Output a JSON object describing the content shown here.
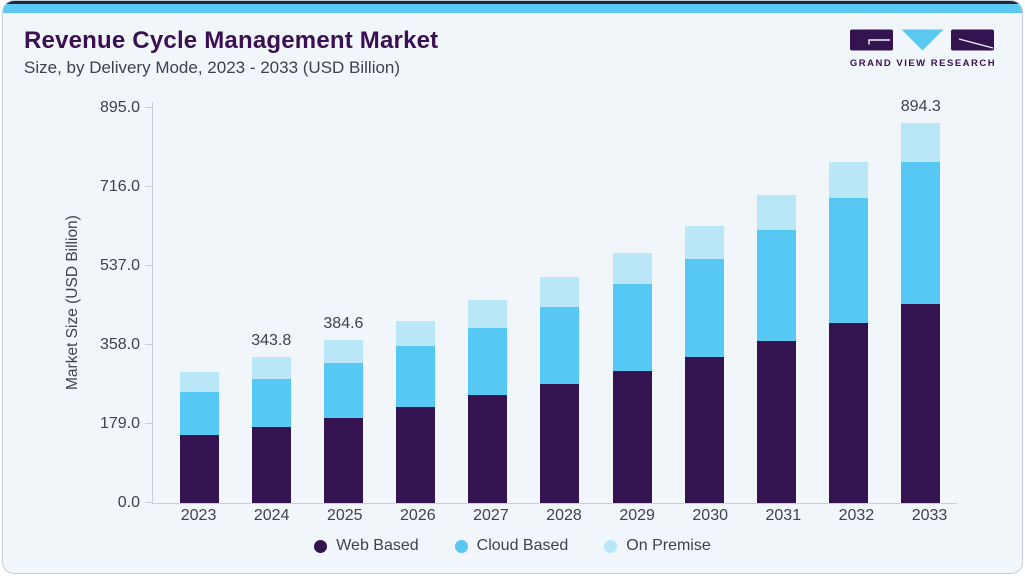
{
  "header": {
    "title": "Revenue Cycle Management Market",
    "subtitle": "Size, by Delivery Mode, 2023 - 2033 (USD Billion)"
  },
  "logo": {
    "text": "GRAND VIEW RESEARCH"
  },
  "colors": {
    "web_based": "#331450",
    "cloud_based": "#56C8F3",
    "on_premise": "#B9E7F8",
    "accent_strip": "#5BC9F2",
    "title_purple": "#3B1053"
  },
  "chart_data": {
    "type": "bar",
    "stacked": true,
    "title": "Revenue Cycle Management Market Size, by Delivery Mode, 2023 - 2033 (USD Billion)",
    "xlabel": "",
    "ylabel": "Market Size (USD Billion)",
    "categories": [
      "2023",
      "2024",
      "2025",
      "2026",
      "2027",
      "2028",
      "2029",
      "2030",
      "2031",
      "2032",
      "2033"
    ],
    "series": [
      {
        "name": "Web Based",
        "color": "#331450",
        "values": [
          160.9,
          179.6,
          200.0,
          225.8,
          253.3,
          280.5,
          310.2,
          344.7,
          382.2,
          422.8,
          468.0
        ]
      },
      {
        "name": "Cloud Based",
        "color": "#56C8F3",
        "values": [
          101.1,
          111.9,
          129.7,
          143.0,
          159.5,
          179.9,
          204.7,
          228.9,
          260.3,
          295.5,
          334.5
        ]
      },
      {
        "name": "On Premise",
        "color": "#B9E7F8",
        "values": [
          45.4,
          52.3,
          54.9,
          59.3,
          64.0,
          71.1,
          74.3,
          78.3,
          82.8,
          85.1,
          91.8
        ]
      }
    ],
    "totals": [
      307.4,
      343.8,
      384.6,
      428.1,
      476.8,
      531.5,
      589.2,
      651.9,
      725.3,
      803.4,
      894.3
    ],
    "bar_labels": [
      "",
      "343.8",
      "384.6",
      "",
      "",
      "",
      "",
      "",
      "",
      "",
      "894.3"
    ],
    "yticks": [
      0,
      179,
      358,
      537,
      716,
      895
    ],
    "ytick_labels": [
      "0.0",
      "179.0",
      "358.0",
      "537.0",
      "716.0",
      "895.0"
    ],
    "ylim": [
      0,
      895
    ],
    "grid": false,
    "legend_position": "bottom"
  }
}
